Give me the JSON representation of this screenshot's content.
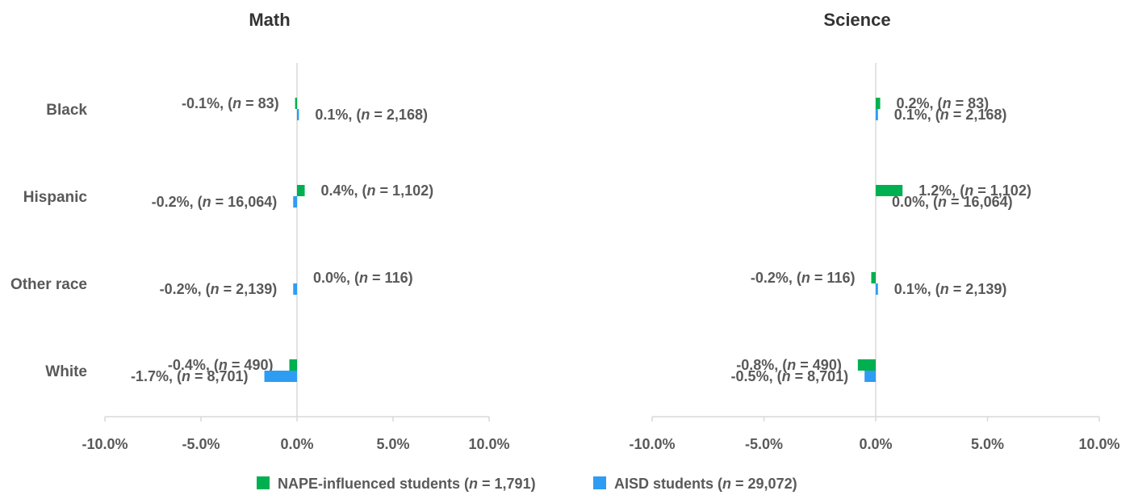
{
  "chart_data": [
    {
      "type": "bar",
      "orientation": "horizontal",
      "title": "Math",
      "categories": [
        "Black",
        "Hispanic",
        "Other race",
        "White"
      ],
      "xlim": [
        -10,
        10
      ],
      "ticks": [
        "-10.0%",
        "-5.0%",
        "0.0%",
        "5.0%",
        "10.0%"
      ],
      "series": [
        {
          "name": "NAPE-influenced students (n = 1,791)",
          "color": "#00b050",
          "values": [
            -0.1,
            0.4,
            0.0,
            -0.4
          ],
          "labels": [
            "-0.1%, (n = 83)",
            "0.4%, (n = 1,102)",
            "0.0%, (n = 116)",
            "-0.4%, (n = 490)"
          ]
        },
        {
          "name": "AISD students (n = 29,072)",
          "color": "#2e9cf2",
          "values": [
            0.1,
            -0.2,
            -0.2,
            -1.7
          ],
          "labels": [
            "0.1%, (n = 2,168)",
            "-0.2%, (n = 16,064)",
            "-0.2%, (n = 2,139)",
            "-1.7%, (n = 8,701)"
          ]
        }
      ]
    },
    {
      "type": "bar",
      "orientation": "horizontal",
      "title": "Science",
      "categories": [
        "Black",
        "Hispanic",
        "Other race",
        "White"
      ],
      "xlim": [
        -10,
        10
      ],
      "ticks": [
        "-10.0%",
        "-5.0%",
        "0.0%",
        "5.0%",
        "10.0%"
      ],
      "series": [
        {
          "name": "NAPE-influenced students (n = 1,791)",
          "color": "#00b050",
          "values": [
            0.2,
            1.2,
            -0.2,
            -0.8
          ],
          "labels": [
            "0.2%, (n = 83)",
            "1.2%, (n = 1,102)",
            "-0.2%, (n = 116)",
            "-0.8%, (n = 490)"
          ]
        },
        {
          "name": "AISD students (n = 29,072)",
          "color": "#2e9cf2",
          "values": [
            0.1,
            0.0,
            0.1,
            -0.5
          ],
          "labels": [
            "0.1%, (n = 2,168)",
            "0.0%, (n = 16,064)",
            "0.1%, (n = 2,139)",
            "-0.5%, (n = 8,701)"
          ]
        }
      ]
    }
  ],
  "legend": {
    "position": "bottom",
    "items": [
      {
        "label": "NAPE-influenced students (n = 1,791)",
        "color": "#00b050"
      },
      {
        "label": "AISD students (n = 29,072)",
        "color": "#2e9cf2"
      }
    ]
  }
}
